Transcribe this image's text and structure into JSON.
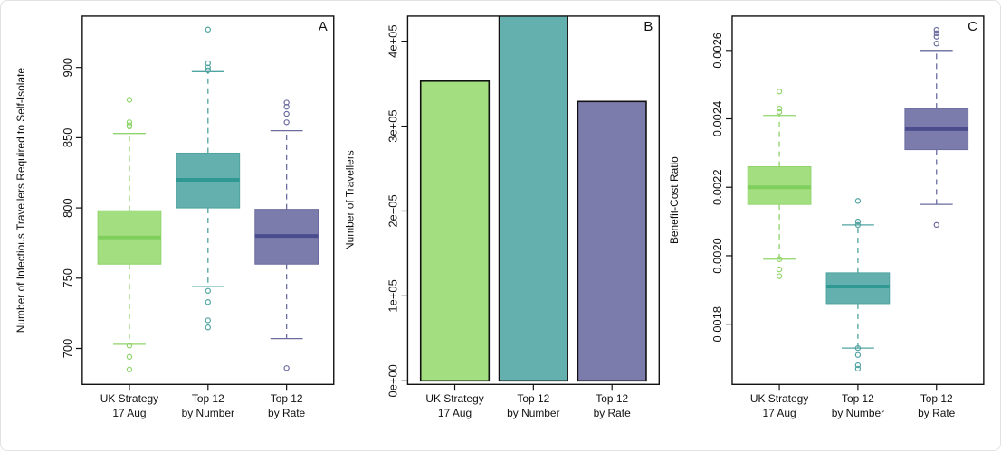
{
  "chart_data": [
    {
      "panel": "A",
      "type": "boxplot",
      "ylabel": "Number of Infectious Travellers Required to Self-Isolate",
      "ylim": [
        674.4,
        936.5
      ],
      "yticks": [
        700,
        750,
        800,
        850,
        900
      ],
      "ytick_labels": [
        "700",
        "750",
        "800",
        "850",
        "900"
      ],
      "categories": [
        [
          "UK Strategy",
          "17 Aug"
        ],
        [
          "Top 12",
          "by Number"
        ],
        [
          "Top 12",
          "by Rate"
        ]
      ],
      "series": [
        {
          "q1": 760,
          "median": 779,
          "q3": 798,
          "whisker_low": 703,
          "whisker_high": 853,
          "outliers": [
            877,
            861,
            859,
            858,
            702,
            694,
            685
          ]
        },
        {
          "q1": 800,
          "median": 820,
          "q3": 839,
          "whisker_low": 744,
          "whisker_high": 897,
          "outliers": [
            927,
            903,
            900,
            898,
            741,
            733,
            720,
            715
          ]
        },
        {
          "q1": 760,
          "median": 780,
          "q3": 799,
          "whisker_low": 707,
          "whisker_high": 855,
          "outliers": [
            875,
            872,
            867,
            861,
            686
          ]
        }
      ],
      "grid": false
    },
    {
      "panel": "B",
      "type": "bar",
      "ylabel": "Number of Travellers",
      "ylim": [
        -4240,
        429500
      ],
      "yticks": [
        0,
        100000,
        200000,
        300000,
        400000
      ],
      "ytick_labels": [
        "0e+00",
        "1e+05",
        "2e+05",
        "3e+05",
        "4e+05"
      ],
      "categories": [
        [
          "UK Strategy",
          "17 Aug"
        ],
        [
          "Top 12",
          "by Number"
        ],
        [
          "Top 12",
          "by Rate"
        ]
      ],
      "values": [
        353000,
        440000,
        329000
      ],
      "grid": false
    },
    {
      "panel": "C",
      "type": "boxplot",
      "ylabel": "Benefit-Cost Ratio",
      "ylim": [
        0.001624,
        0.0027
      ],
      "yticks": [
        0.0018,
        0.002,
        0.0022,
        0.0024,
        0.0026
      ],
      "ytick_labels": [
        "0.0018",
        "0.0020",
        "0.0022",
        "0.0024",
        "0.0026"
      ],
      "categories": [
        [
          "UK Strategy",
          "17 Aug"
        ],
        [
          "Top 12",
          "by Number"
        ],
        [
          "Top 12",
          "by Rate"
        ]
      ],
      "series": [
        {
          "q1": 0.00215,
          "median": 0.0022,
          "q3": 0.00226,
          "whisker_low": 0.00199,
          "whisker_high": 0.00241,
          "outliers": [
            0.00248,
            0.00243,
            0.00242,
            0.00199,
            0.00196,
            0.00194
          ]
        },
        {
          "q1": 0.00186,
          "median": 0.00191,
          "q3": 0.00195,
          "whisker_low": 0.00173,
          "whisker_high": 0.00209,
          "outliers": [
            0.00216,
            0.0021,
            0.00209,
            0.00173,
            0.00171,
            0.00168,
            0.00167
          ]
        },
        {
          "q1": 0.00231,
          "median": 0.00237,
          "q3": 0.00243,
          "whisker_low": 0.00215,
          "whisker_high": 0.0026,
          "outliers": [
            0.00266,
            0.00265,
            0.00264,
            0.00262,
            0.00209
          ]
        }
      ],
      "grid": false
    }
  ],
  "colors": {
    "fill": [
      "#a3df80",
      "#63b0ae",
      "#7b7cac"
    ],
    "median": [
      "#80cf5c",
      "#2f9893",
      "#4b4c8d"
    ],
    "whisker": [
      "#8fd46a",
      "#4fa3a0",
      "#6a6b9e"
    ]
  }
}
